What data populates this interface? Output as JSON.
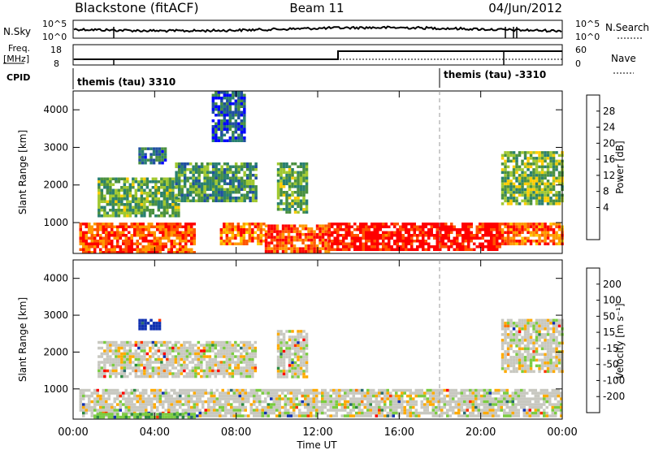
{
  "header": {
    "station": "Blackstone (fitACF)",
    "beam": "Beam 11",
    "date": "04/Jun/2012"
  },
  "top_panels": {
    "nsky_label": "N.Sky",
    "nsky_ticks": [
      "10^5",
      "10^0"
    ],
    "nsearch_label": "N.Search",
    "nsearch_ticks": [
      "10^5",
      "10^0"
    ],
    "freq_label_1": "Freq.",
    "freq_label_2": "[MHz]",
    "freq_ticks": [
      "18",
      "8"
    ],
    "nave_label": "Nave",
    "nave_ticks": [
      "60",
      "0"
    ],
    "cpid_label": "CPID",
    "cpid_entries": [
      {
        "text": "themis (tau) 3310",
        "start_hour": 0
      },
      {
        "text": "themis (tau) -3310",
        "start_hour": 18
      }
    ]
  },
  "chart_data": [
    {
      "type": "heatmap",
      "name": "Power",
      "ylabel": "Slant Range [km]",
      "xlabel": "Time UT",
      "x_ticks": [
        "00:00",
        "04:00",
        "08:00",
        "12:00",
        "16:00",
        "20:00",
        "00:00"
      ],
      "y_ticks": [
        "1000",
        "2000",
        "3000",
        "4000"
      ],
      "xlim_hours": [
        0,
        24
      ],
      "ylim_km": [
        180,
        4500
      ],
      "colorbar_title": "Power [dB]",
      "colorbar_ticks": [
        "28",
        "24",
        "20",
        "16",
        "12",
        "8",
        "4"
      ],
      "colorbar_colors": [
        "#ff0000",
        "#ff5500",
        "#ff9900",
        "#ffcc00",
        "#a0c830",
        "#4a9040",
        "#2a8070",
        "#2050a0",
        "#0000ff"
      ],
      "dashed_line_hour": 18,
      "regions": [
        {
          "t0": 0.3,
          "t1": 6.0,
          "r0": 220,
          "r1": 1000,
          "level": 0.85
        },
        {
          "t0": 7.2,
          "t1": 9.4,
          "r0": 400,
          "r1": 1000,
          "level": 0.8
        },
        {
          "t0": 9.4,
          "t1": 12.5,
          "r0": 250,
          "r1": 950,
          "level": 0.85
        },
        {
          "t0": 12.5,
          "t1": 21.0,
          "r0": 250,
          "r1": 1000,
          "level": 0.95
        },
        {
          "t0": 21.0,
          "t1": 24.0,
          "r0": 400,
          "r1": 1000,
          "level": 0.8
        },
        {
          "t0": 1.2,
          "t1": 5.2,
          "r0": 1200,
          "r1": 2200,
          "level": 0.4
        },
        {
          "t0": 5.0,
          "t1": 9.0,
          "r0": 1600,
          "r1": 2600,
          "level": 0.35
        },
        {
          "t0": 10.0,
          "t1": 11.5,
          "r0": 1300,
          "r1": 2600,
          "level": 0.4
        },
        {
          "t0": 21.0,
          "t1": 24.0,
          "r0": 1500,
          "r1": 2900,
          "level": 0.45
        },
        {
          "t0": 3.2,
          "t1": 4.5,
          "r0": 2600,
          "r1": 3000,
          "level": 0.25
        },
        {
          "t0": 6.8,
          "t1": 8.4,
          "r0": 3200,
          "r1": 4500,
          "level": 0.2
        }
      ]
    },
    {
      "type": "heatmap",
      "name": "Velocity",
      "ylabel": "Slant Range [km]",
      "xlabel": "Time UT",
      "x_ticks": [
        "00:00",
        "04:00",
        "08:00",
        "12:00",
        "16:00",
        "20:00",
        "00:00"
      ],
      "y_ticks": [
        "1000",
        "2000",
        "3000",
        "4000"
      ],
      "xlim_hours": [
        0,
        24
      ],
      "ylim_km": [
        180,
        4500
      ],
      "colorbar_title": "Velocity [m s⁻¹]",
      "colorbar_ticks": [
        "200",
        "100",
        "50",
        "15",
        "-15",
        "-50",
        "-100",
        "-200"
      ],
      "colorbar_colors": [
        "#1030b0",
        "#2a6a70",
        "#2a8a40",
        "#7acc40",
        "#c8c8c0",
        "#ffaa00",
        "#ff7700",
        "#ff3300",
        "#ff0000"
      ],
      "dashed_line_hour": 18,
      "regions": [
        {
          "t0": 0.3,
          "t1": 24.0,
          "r0": 300,
          "r1": 1000,
          "level": 0.5
        },
        {
          "t0": 1.2,
          "t1": 9.0,
          "r0": 1300,
          "r1": 2300,
          "level": 0.5
        },
        {
          "t0": 10.0,
          "t1": 11.5,
          "r0": 1300,
          "r1": 2600,
          "level": 0.5
        },
        {
          "t0": 21.0,
          "t1": 24.0,
          "r0": 1500,
          "r1": 2900,
          "level": 0.5
        },
        {
          "t0": 3.2,
          "t1": 4.2,
          "r0": 2600,
          "r1": 2900,
          "level": 0.95
        },
        {
          "t0": 1.0,
          "t1": 6.0,
          "r0": 200,
          "r1": 350,
          "level": 0.65
        }
      ]
    }
  ]
}
